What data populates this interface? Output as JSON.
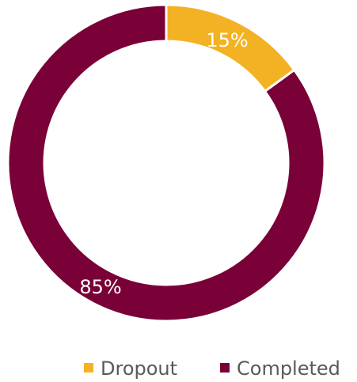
{
  "chart_data": {
    "type": "pie",
    "variant": "donut",
    "title": "",
    "slices": [
      {
        "label": "Dropout",
        "value": 15,
        "value_label": "15%",
        "color": "#f3b223"
      },
      {
        "label": "Completed",
        "value": 85,
        "value_label": "85%",
        "color": "#7a0038"
      }
    ],
    "start": "top, clockwise",
    "legend": {
      "position": "bottom-right",
      "entries": [
        "Dropout",
        "Completed"
      ]
    }
  }
}
